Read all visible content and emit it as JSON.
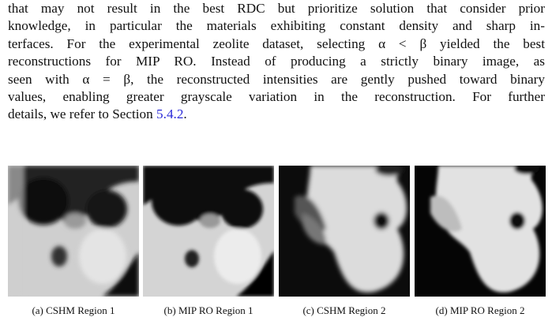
{
  "paragraph": {
    "lines": [
      "that may not result in the best RDC but prioritize solution that consider prior",
      "knowledge, in particular the materials exhibiting constant density and sharp in-",
      "terfaces. For the experimental zeolite dataset, selecting α < β yielded the best",
      "reconstructions for MIP RO. Instead of producing a strictly binary image, as",
      "seen with α = β, the reconstructed intensities are gently pushed toward binary",
      "values, enabling greater grayscale variation in the reconstruction. For further"
    ],
    "last_line": {
      "text": "details, we refer to Section ",
      "link": "5.4.2",
      "end": "."
    }
  },
  "figure": {
    "captions": [
      "(a) CSHM Region 1",
      "(b) MIP RO Region 1",
      "(c) CSHM Region 2",
      "(d) MIP RO Region 2"
    ]
  }
}
